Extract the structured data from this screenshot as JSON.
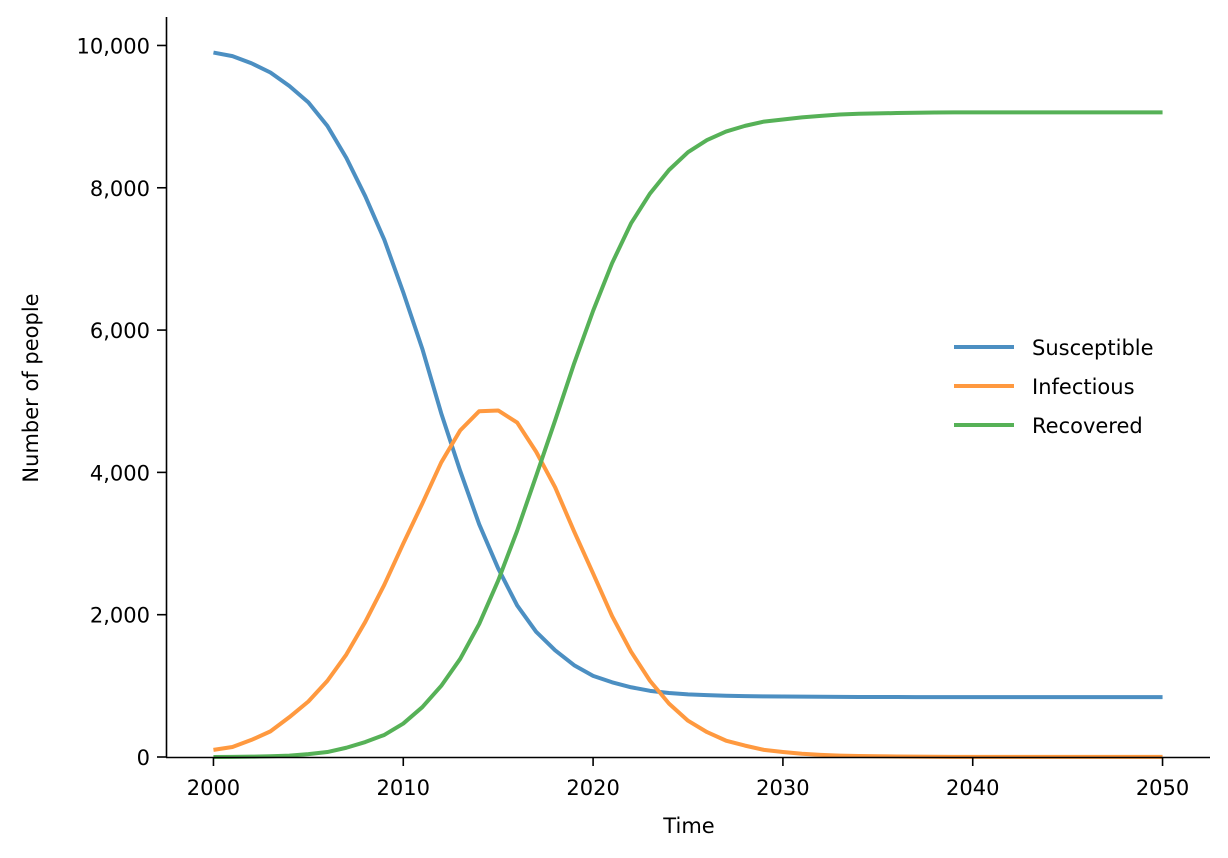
{
  "chart_data": {
    "type": "line",
    "xlabel": "Time",
    "ylabel": "Number of people",
    "xlim": [
      1997.5,
      2052.5
    ],
    "ylim": [
      0,
      10400
    ],
    "xticks": [
      2000,
      2010,
      2020,
      2030,
      2040,
      2050
    ],
    "xtick_labels": [
      "2000",
      "2010",
      "2020",
      "2030",
      "2040",
      "2050"
    ],
    "yticks": [
      0,
      2000,
      4000,
      6000,
      8000,
      10000
    ],
    "ytick_labels": [
      "0",
      "2,000",
      "4,000",
      "6,000",
      "8,000",
      "10,000"
    ],
    "grid": false,
    "legend_position": "center-right",
    "x": [
      2000,
      2001,
      2002,
      2003,
      2004,
      2005,
      2006,
      2007,
      2008,
      2009,
      2010,
      2011,
      2012,
      2013,
      2014,
      2015,
      2016,
      2017,
      2018,
      2019,
      2020,
      2021,
      2022,
      2023,
      2024,
      2025,
      2026,
      2027,
      2028,
      2029,
      2030,
      2031,
      2032,
      2033,
      2034,
      2035,
      2036,
      2037,
      2038,
      2039,
      2040,
      2041,
      2042,
      2043,
      2044,
      2045,
      2046,
      2047,
      2048,
      2049,
      2050
    ],
    "series": [
      {
        "name": "Susceptible",
        "color": "#4c8fc2",
        "values": [
          9900,
          9850,
          9750,
          9620,
          9430,
          9200,
          8870,
          8420,
          7880,
          7270,
          6530,
          5740,
          4830,
          4020,
          3270,
          2650,
          2130,
          1760,
          1500,
          1290,
          1140,
          1050,
          980,
          930,
          900,
          880,
          870,
          860,
          855,
          852,
          850,
          848,
          846,
          845,
          844,
          843,
          843,
          842,
          842,
          842,
          842,
          842,
          842,
          842,
          842,
          842,
          842,
          842,
          842,
          842,
          842
        ]
      },
      {
        "name": "Infectious",
        "color": "#ff993f",
        "values": [
          100,
          140,
          240,
          360,
          560,
          780,
          1070,
          1440,
          1900,
          2420,
          3000,
          3560,
          4140,
          4590,
          4860,
          4870,
          4700,
          4290,
          3790,
          3170,
          2580,
          1980,
          1480,
          1070,
          750,
          510,
          350,
          230,
          160,
          100,
          70,
          45,
          30,
          20,
          14,
          10,
          7,
          5,
          3,
          2,
          2,
          1,
          1,
          1,
          1,
          1,
          1,
          1,
          1,
          1,
          1
        ]
      },
      {
        "name": "Recovered",
        "color": "#56b157",
        "values": [
          0,
          2,
          5,
          10,
          20,
          40,
          70,
          130,
          210,
          310,
          470,
          700,
          1000,
          1380,
          1870,
          2480,
          3180,
          3950,
          4730,
          5530,
          6270,
          6940,
          7500,
          7920,
          8250,
          8500,
          8670,
          8790,
          8870,
          8930,
          8960,
          8990,
          9010,
          9030,
          9040,
          9045,
          9050,
          9055,
          9058,
          9060,
          9060,
          9060,
          9060,
          9060,
          9060,
          9060,
          9060,
          9060,
          9060,
          9060,
          9060
        ]
      }
    ]
  }
}
